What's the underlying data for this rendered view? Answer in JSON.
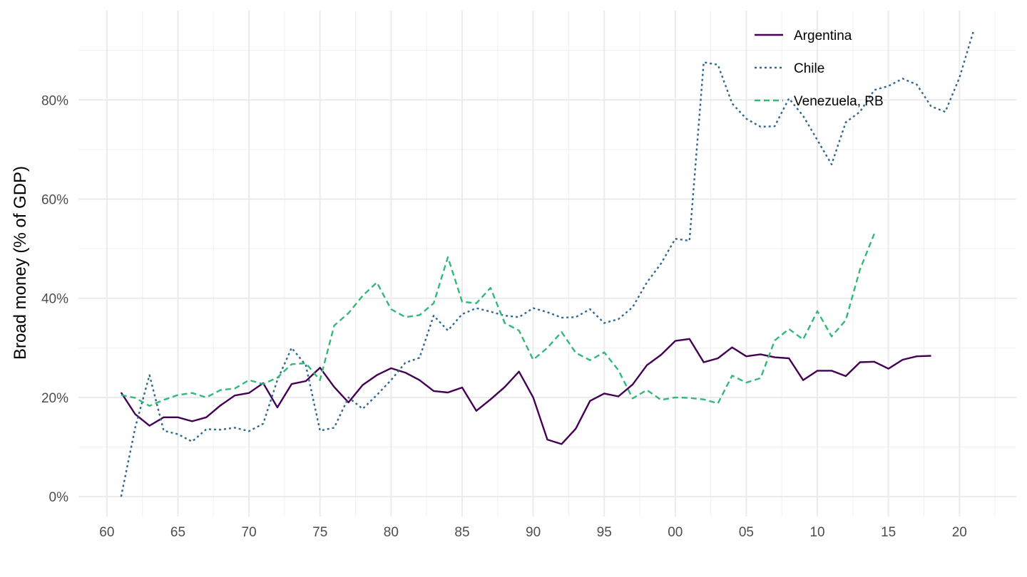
{
  "chart_data": {
    "type": "line",
    "title": "",
    "xlabel": "",
    "ylabel": "Broad money (% of GDP)",
    "xlim": [
      1958,
      2024
    ],
    "ylim": [
      -4,
      98
    ],
    "x_ticks": [
      {
        "value": 1960,
        "label": "60"
      },
      {
        "value": 1965,
        "label": "65"
      },
      {
        "value": 1970,
        "label": "70"
      },
      {
        "value": 1975,
        "label": "75"
      },
      {
        "value": 1980,
        "label": "80"
      },
      {
        "value": 1985,
        "label": "85"
      },
      {
        "value": 1990,
        "label": "90"
      },
      {
        "value": 1995,
        "label": "95"
      },
      {
        "value": 2000,
        "label": "00"
      },
      {
        "value": 2005,
        "label": "05"
      },
      {
        "value": 2010,
        "label": "10"
      },
      {
        "value": 2015,
        "label": "15"
      },
      {
        "value": 2020,
        "label": "20"
      }
    ],
    "y_ticks": [
      {
        "value": 0,
        "label": "0%"
      },
      {
        "value": 20,
        "label": "20%"
      },
      {
        "value": 40,
        "label": "40%"
      },
      {
        "value": 60,
        "label": "60%"
      },
      {
        "value": 80,
        "label": "80%"
      }
    ],
    "grid": true,
    "legend_position": "top-right",
    "series": [
      {
        "name": "Argentina",
        "color": "#440154",
        "dash": "solid",
        "x": [
          1961,
          1962,
          1963,
          1964,
          1965,
          1966,
          1967,
          1968,
          1969,
          1970,
          1971,
          1972,
          1973,
          1974,
          1975,
          1976,
          1977,
          1978,
          1979,
          1980,
          1981,
          1982,
          1983,
          1984,
          1985,
          1986,
          1987,
          1988,
          1989,
          1990,
          1991,
          1992,
          1993,
          1994,
          1995,
          1996,
          1997,
          1998,
          1999,
          2000,
          2001,
          2002,
          2003,
          2004,
          2005,
          2006,
          2007,
          2008,
          2009,
          2010,
          2011,
          2012,
          2013,
          2014,
          2015,
          2016,
          2017,
          2018
        ],
        "values": [
          21.0,
          16.6,
          14.3,
          16.0,
          16.0,
          15.2,
          16.0,
          18.4,
          20.4,
          20.9,
          22.9,
          18.0,
          22.7,
          23.3,
          26.0,
          22.1,
          19.0,
          22.5,
          24.5,
          25.9,
          25.0,
          23.5,
          21.3,
          21.0,
          22.0,
          17.3,
          19.6,
          22.1,
          25.2,
          20.0,
          11.5,
          10.6,
          13.7,
          19.3,
          20.8,
          20.2,
          22.6,
          26.5,
          28.6,
          31.4,
          31.8,
          27.1,
          27.9,
          30.1,
          28.3,
          28.7,
          28.1,
          27.9,
          23.5,
          25.4,
          25.4,
          24.3,
          27.1,
          27.2,
          25.8,
          27.6,
          28.3,
          28.4
        ]
      },
      {
        "name": "Chile",
        "color": "#31688e",
        "dash": "dotted",
        "x": [
          1961,
          1962,
          1963,
          1964,
          1965,
          1966,
          1967,
          1968,
          1969,
          1970,
          1971,
          1972,
          1973,
          1974,
          1975,
          1976,
          1977,
          1978,
          1979,
          1980,
          1981,
          1982,
          1983,
          1984,
          1985,
          1986,
          1987,
          1988,
          1989,
          1990,
          1991,
          1992,
          1993,
          1994,
          1995,
          1996,
          1997,
          1998,
          1999,
          2000,
          2001,
          2002,
          2003,
          2004,
          2005,
          2006,
          2007,
          2008,
          2009,
          2010,
          2011,
          2012,
          2013,
          2014,
          2015,
          2016,
          2017,
          2018,
          2019,
          2020,
          2021
        ],
        "values": [
          0.0,
          14.0,
          24.5,
          13.3,
          12.6,
          11.1,
          13.6,
          13.5,
          13.9,
          13.2,
          14.7,
          23.5,
          30.0,
          26.5,
          13.3,
          13.9,
          20.0,
          17.7,
          20.5,
          23.5,
          27.0,
          28.0,
          36.5,
          33.5,
          36.8,
          38.0,
          37.3,
          36.5,
          36.2,
          38.0,
          37.2,
          36.1,
          36.2,
          37.8,
          35.0,
          35.8,
          38.2,
          43.2,
          47.0,
          52.0,
          51.6,
          87.6,
          87.1,
          79.3,
          76.2,
          74.6,
          74.7,
          80.3,
          76.8,
          71.9,
          67.0,
          75.5,
          77.6,
          82.0,
          82.8,
          84.3,
          83.1,
          78.7,
          77.6,
          84.5,
          94.0
        ]
      },
      {
        "name": "Venezuela, RB",
        "color": "#35b779",
        "dash": "dashed",
        "x": [
          1961,
          1962,
          1963,
          1964,
          1965,
          1966,
          1967,
          1968,
          1969,
          1970,
          1971,
          1972,
          1973,
          1974,
          1975,
          1976,
          1977,
          1978,
          1979,
          1980,
          1981,
          1982,
          1983,
          1984,
          1985,
          1986,
          1987,
          1988,
          1989,
          1990,
          1991,
          1992,
          1993,
          1994,
          1995,
          1996,
          1997,
          1998,
          1999,
          2000,
          2001,
          2002,
          2003,
          2004,
          2005,
          2006,
          2007,
          2008,
          2009,
          2010,
          2011,
          2012,
          2013,
          2014
        ],
        "values": [
          20.5,
          19.9,
          18.3,
          19.5,
          20.5,
          20.9,
          20.0,
          21.5,
          21.8,
          23.5,
          22.7,
          24.0,
          26.7,
          26.9,
          23.5,
          34.5,
          37.0,
          40.5,
          43.2,
          37.8,
          36.2,
          36.6,
          39.0,
          48.3,
          39.3,
          39.0,
          42.1,
          35.0,
          33.5,
          27.6,
          30.0,
          33.2,
          29.0,
          27.5,
          29.1,
          25.5,
          19.8,
          21.5,
          19.5,
          20.0,
          19.9,
          19.6,
          18.8,
          24.4,
          23.0,
          23.9,
          31.5,
          33.8,
          31.7,
          37.4,
          32.3,
          35.6,
          45.8,
          53.0
        ]
      }
    ]
  }
}
